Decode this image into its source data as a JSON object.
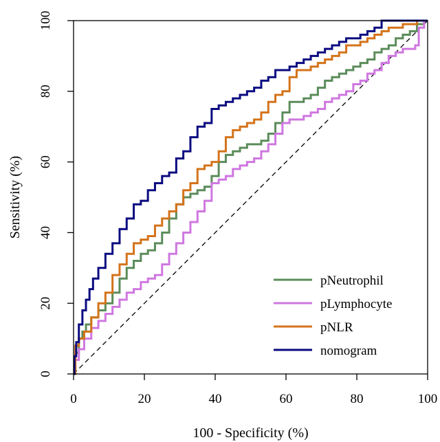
{
  "chart_data": {
    "type": "line",
    "title": "",
    "xlabel": "100 - Specificity (%)",
    "ylabel": "Sensitivity (%)",
    "xlim": [
      0,
      100
    ],
    "ylim": [
      0,
      100
    ],
    "xticks": [
      0,
      20,
      40,
      60,
      80,
      100
    ],
    "yticks": [
      0,
      20,
      40,
      60,
      80,
      100
    ],
    "grid": false,
    "legend_position": "bottom-right",
    "reference_line": {
      "x": [
        0,
        100
      ],
      "y": [
        0,
        100
      ],
      "style": "dashed",
      "color": "#000000"
    },
    "series": [
      {
        "name": "pNeutrophil",
        "color": "#5b8c5a",
        "x": [
          0,
          1,
          2,
          3,
          4,
          6,
          8,
          10,
          12,
          14,
          16,
          18,
          20,
          22,
          24,
          26,
          28,
          30,
          32,
          34,
          36,
          38,
          40,
          42,
          44,
          46,
          48,
          50,
          52,
          54,
          56,
          58,
          60,
          62,
          64,
          66,
          68,
          70,
          72,
          74,
          76,
          78,
          80,
          82,
          84,
          86,
          88,
          90,
          92,
          94,
          96,
          98,
          100
        ],
        "y": [
          0,
          6,
          10,
          12,
          14,
          16,
          18,
          20,
          23,
          27,
          30,
          32,
          34,
          35,
          37,
          40,
          44,
          48,
          50,
          51,
          52,
          53,
          56,
          60,
          62,
          63,
          64,
          65,
          65,
          66,
          68,
          71,
          74,
          77,
          77,
          78,
          79,
          81,
          83,
          84,
          85,
          86,
          87,
          88,
          89,
          91,
          92,
          93,
          95,
          96,
          97,
          99,
          100
        ]
      },
      {
        "name": "pLymphocyte",
        "color": "#cf77e0",
        "x": [
          0,
          1,
          2,
          4,
          6,
          8,
          10,
          12,
          14,
          16,
          18,
          20,
          22,
          24,
          26,
          28,
          30,
          32,
          34,
          36,
          38,
          40,
          42,
          44,
          46,
          48,
          50,
          52,
          54,
          56,
          58,
          60,
          62,
          64,
          66,
          68,
          70,
          72,
          74,
          76,
          78,
          80,
          82,
          84,
          86,
          88,
          90,
          92,
          94,
          96,
          97,
          98,
          100
        ],
        "y": [
          0,
          4,
          7,
          10,
          13,
          15,
          17,
          19,
          21,
          23,
          24,
          26,
          27,
          28,
          31,
          34,
          37,
          40,
          43,
          46,
          49,
          54,
          55,
          56,
          58,
          59,
          60,
          61,
          63,
          65,
          68,
          71,
          72,
          72,
          73,
          74,
          75,
          77,
          78,
          79,
          80,
          82,
          83,
          85,
          86,
          88,
          90,
          91,
          92,
          92,
          93,
          98,
          100
        ]
      },
      {
        "name": "pNLR",
        "color": "#d4731a",
        "x": [
          0,
          1,
          2,
          4,
          6,
          8,
          10,
          12,
          14,
          16,
          18,
          20,
          22,
          24,
          26,
          28,
          30,
          32,
          34,
          36,
          38,
          40,
          42,
          44,
          46,
          48,
          50,
          52,
          54,
          56,
          58,
          60,
          62,
          64,
          66,
          68,
          70,
          72,
          74,
          76,
          78,
          80,
          82,
          84,
          86,
          88,
          90,
          92,
          94,
          96,
          98,
          100
        ],
        "y": [
          0,
          8,
          10,
          12,
          16,
          20,
          23,
          28,
          31,
          34,
          37,
          38,
          39,
          42,
          44,
          46,
          48,
          52,
          54,
          58,
          59,
          60,
          63,
          67,
          69,
          70,
          71,
          72,
          74,
          77,
          79,
          80,
          84,
          86,
          86,
          87,
          88,
          89,
          90,
          91,
          93,
          93,
          94,
          95,
          96,
          97,
          98,
          98,
          99,
          99,
          100,
          100
        ]
      },
      {
        "name": "nomogram",
        "color": "#0a0a80",
        "x": [
          0,
          0.5,
          1,
          2,
          3,
          4,
          5,
          6,
          8,
          10,
          12,
          14,
          16,
          18,
          20,
          22,
          24,
          26,
          28,
          30,
          32,
          34,
          36,
          38,
          40,
          42,
          44,
          46,
          48,
          50,
          52,
          54,
          56,
          58,
          60,
          62,
          64,
          66,
          68,
          70,
          72,
          74,
          76,
          78,
          80,
          82,
          84,
          86,
          88,
          90,
          92,
          100
        ],
        "y": [
          0,
          5,
          9,
          14,
          18,
          21,
          24,
          27,
          30,
          34,
          37,
          41,
          44,
          48,
          49,
          52,
          54,
          56,
          57,
          61,
          63,
          67,
          70,
          71,
          75,
          76,
          77,
          78,
          79,
          80,
          81,
          83,
          84,
          86,
          86,
          87,
          88,
          89,
          90,
          91,
          92,
          93,
          94,
          95,
          95,
          96,
          97,
          98,
          100,
          100,
          100,
          100
        ]
      }
    ]
  }
}
